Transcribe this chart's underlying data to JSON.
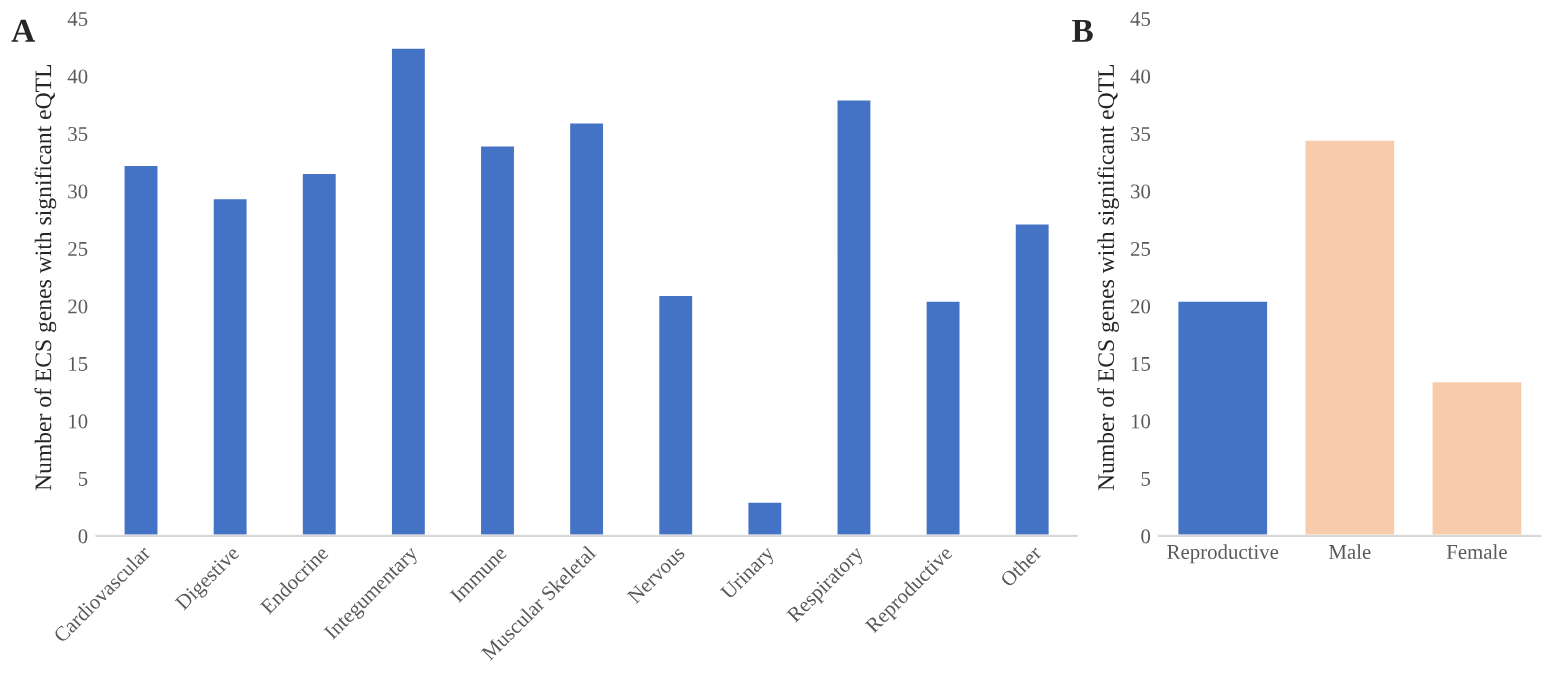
{
  "chart_data": [
    {
      "type": "bar",
      "ylabel": "Number of ECS genes with significant eQTL",
      "annotations": [
        "A"
      ],
      "categories": [
        "Cardiovascular",
        "Digestive",
        "Endocrine",
        "Integumentary",
        "Immune",
        "Muscular Skeletal",
        "Nervous",
        "Urinary",
        "Respiratory",
        "Reproductive",
        "Other"
      ],
      "values": [
        32.3,
        29.4,
        31.6,
        42.5,
        34,
        36,
        21,
        3,
        38,
        20.5,
        27.2
      ],
      "colors": [
        "#4472c4",
        "#4472c4",
        "#4472c4",
        "#4472c4",
        "#4472c4",
        "#4472c4",
        "#4472c4",
        "#4472c4",
        "#4472c4",
        "#4472c4",
        "#4472c4"
      ],
      "ylim": [
        0,
        45
      ],
      "yticks": [
        0,
        5,
        10,
        15,
        20,
        25,
        30,
        35,
        40,
        45
      ],
      "grid": false,
      "legend": false
    },
    {
      "type": "bar",
      "ylabel": "Number of ECS genes with significant eQTL",
      "annotations": [
        "B"
      ],
      "categories": [
        "Reproductive",
        "Male",
        "Female"
      ],
      "values": [
        20.5,
        34.5,
        13.5
      ],
      "colors": [
        "#4472c4",
        "#f8cbad",
        "#f8cbad"
      ],
      "ylim": [
        0,
        45
      ],
      "yticks": [
        0,
        5,
        10,
        15,
        20,
        25,
        30,
        35,
        40,
        45
      ],
      "grid": false,
      "legend": false
    }
  ]
}
